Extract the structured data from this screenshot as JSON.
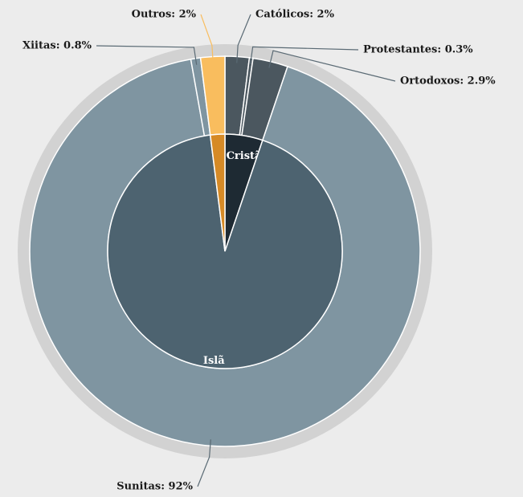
{
  "chart_data": {
    "type": "sunburst",
    "inner": {
      "categories": [
        "Cristãos",
        "Islã",
        null
      ],
      "values": [
        5.2,
        92.8,
        2
      ],
      "colors": [
        "#1e2a33",
        "#4d6370",
        "#d68a26"
      ]
    },
    "outer": {
      "labels": [
        "Católicos: 2%",
        "Protestantes: 0.3%",
        "Ortodoxos: 2.9%",
        "Sunitas: 92%",
        "Xiitas: 0.8%",
        "Outros: 2%"
      ],
      "values": [
        2,
        0.3,
        2.9,
        92,
        0.8,
        2
      ],
      "colors": [
        "#4b575f",
        "#4b575f",
        "#4b575f",
        "#7f95a1",
        "#7f95a1",
        "#f9bd5e"
      ]
    }
  }
}
